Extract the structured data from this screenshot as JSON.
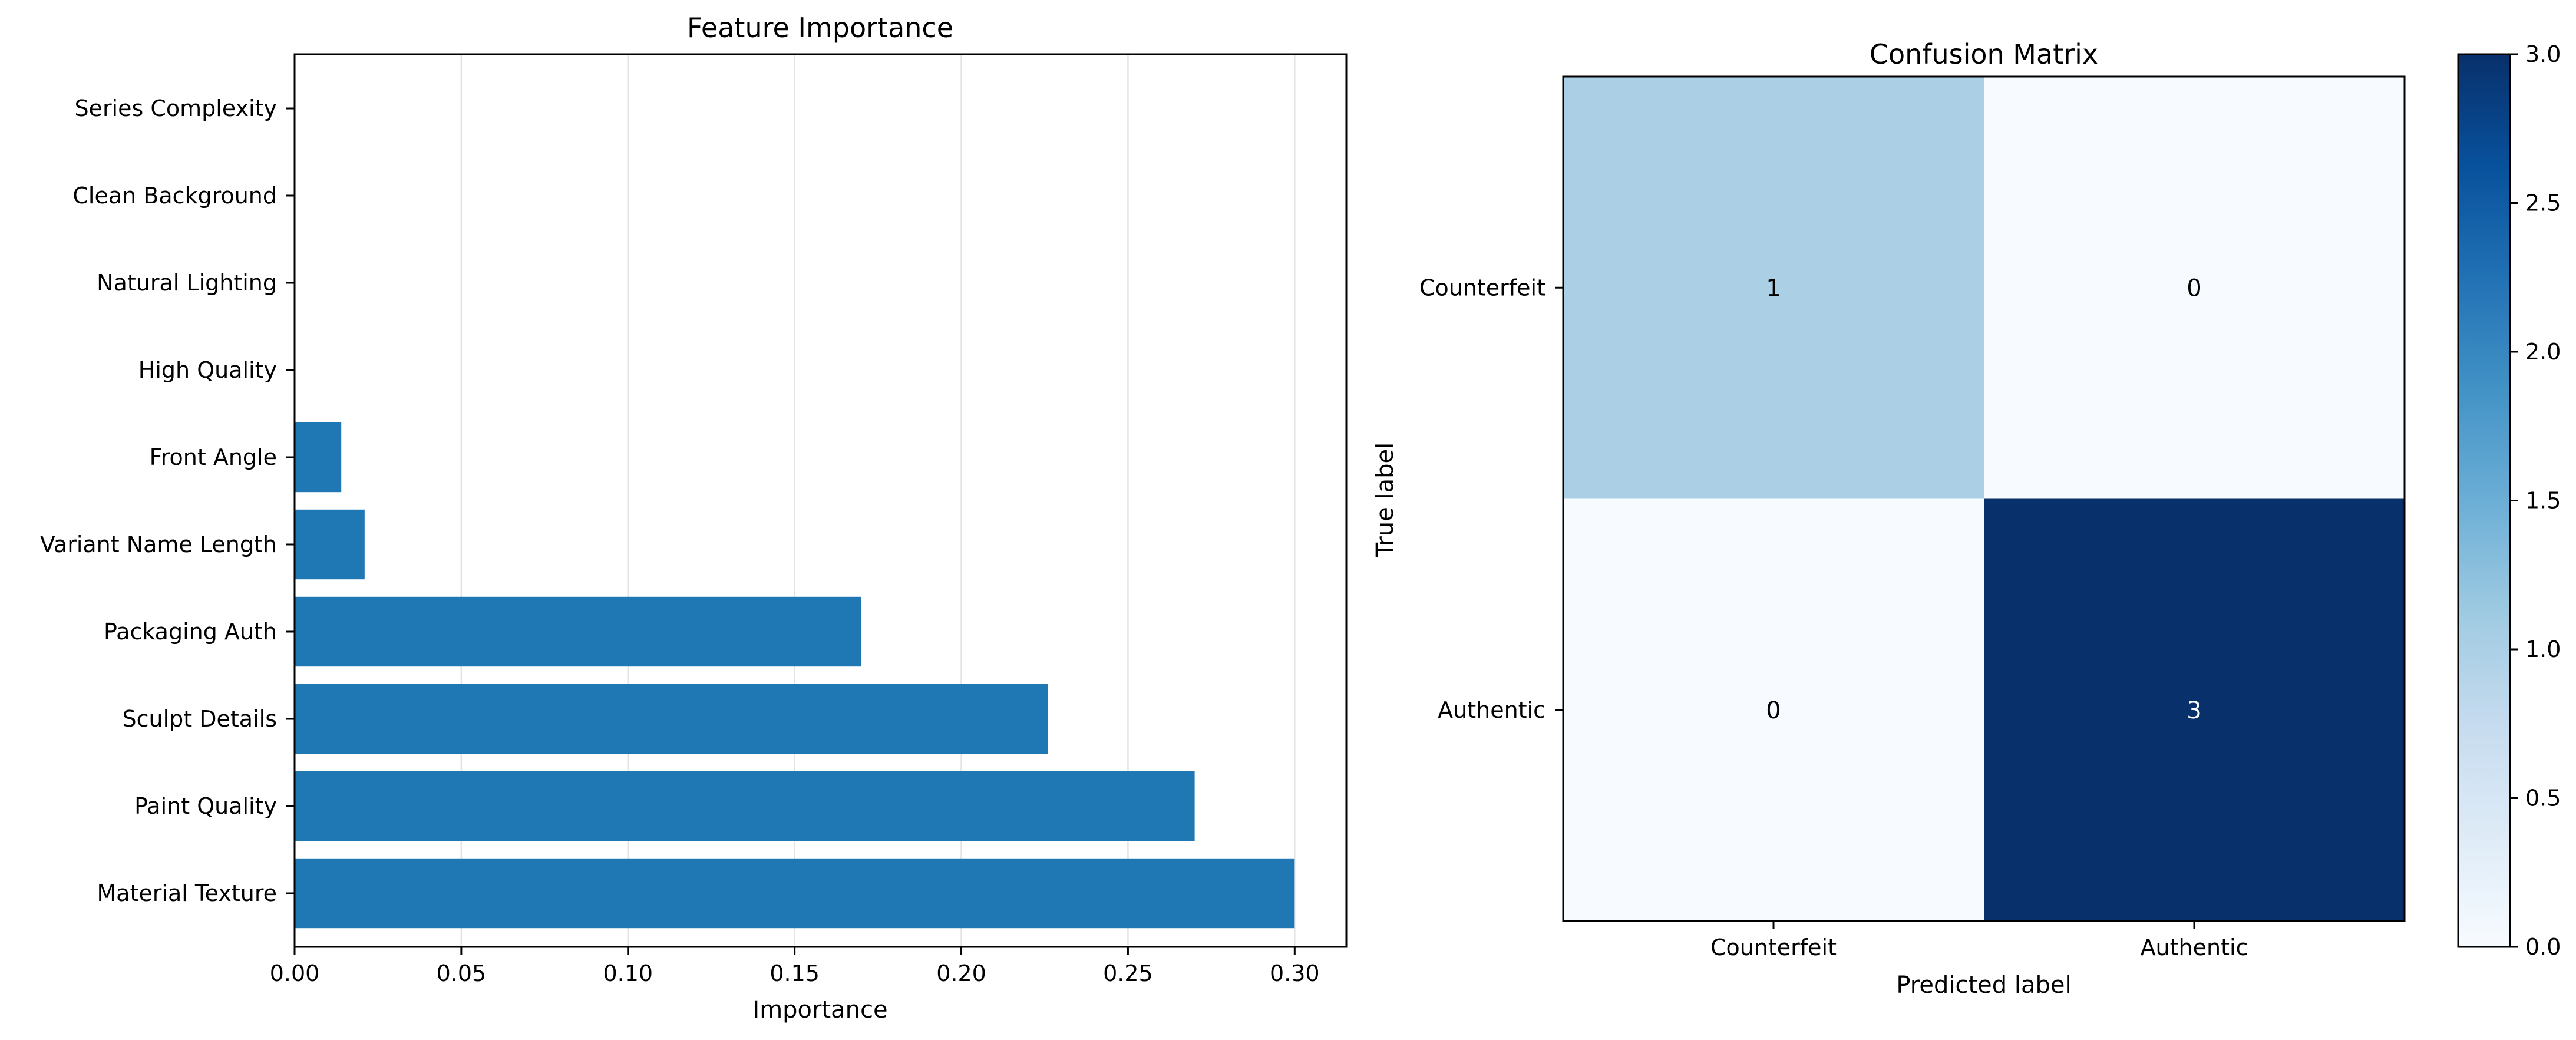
{
  "chart_data": [
    {
      "type": "bar",
      "orientation": "horizontal",
      "title": "Feature Importance",
      "xlabel": "Importance",
      "ylabel": "",
      "categories": [
        "Material Texture",
        "Paint Quality",
        "Sculpt Details",
        "Packaging Auth",
        "Variant Name Length",
        "Front Angle",
        "High Quality",
        "Natural Lighting",
        "Clean Background",
        "Series Complexity"
      ],
      "values": [
        0.3,
        0.27,
        0.226,
        0.17,
        0.021,
        0.014,
        0.0,
        0.0,
        0.0,
        0.0
      ],
      "xlim": [
        0.0,
        0.3155
      ],
      "xticks": [
        0.0,
        0.05,
        0.1,
        0.15,
        0.2,
        0.25,
        0.3
      ],
      "xtick_labels": [
        "0.00",
        "0.05",
        "0.10",
        "0.15",
        "0.20",
        "0.25",
        "0.30"
      ],
      "grid": "x",
      "color": "#1f77b4"
    },
    {
      "type": "heatmap",
      "title": "Confusion Matrix",
      "xlabel": "Predicted label",
      "ylabel": "True label",
      "x_categories": [
        "Counterfeit",
        "Authentic"
      ],
      "y_categories": [
        "Counterfeit",
        "Authentic"
      ],
      "values": [
        [
          1,
          0
        ],
        [
          0,
          3
        ]
      ],
      "colormap": "Blues",
      "colorbar": {
        "range": [
          0.0,
          3.0
        ],
        "ticks": [
          0.0,
          0.5,
          1.0,
          1.5,
          2.0,
          2.5,
          3.0
        ],
        "tick_labels": [
          "0.0",
          "0.5",
          "1.0",
          "1.5",
          "2.0",
          "2.5",
          "3.0"
        ]
      }
    }
  ]
}
